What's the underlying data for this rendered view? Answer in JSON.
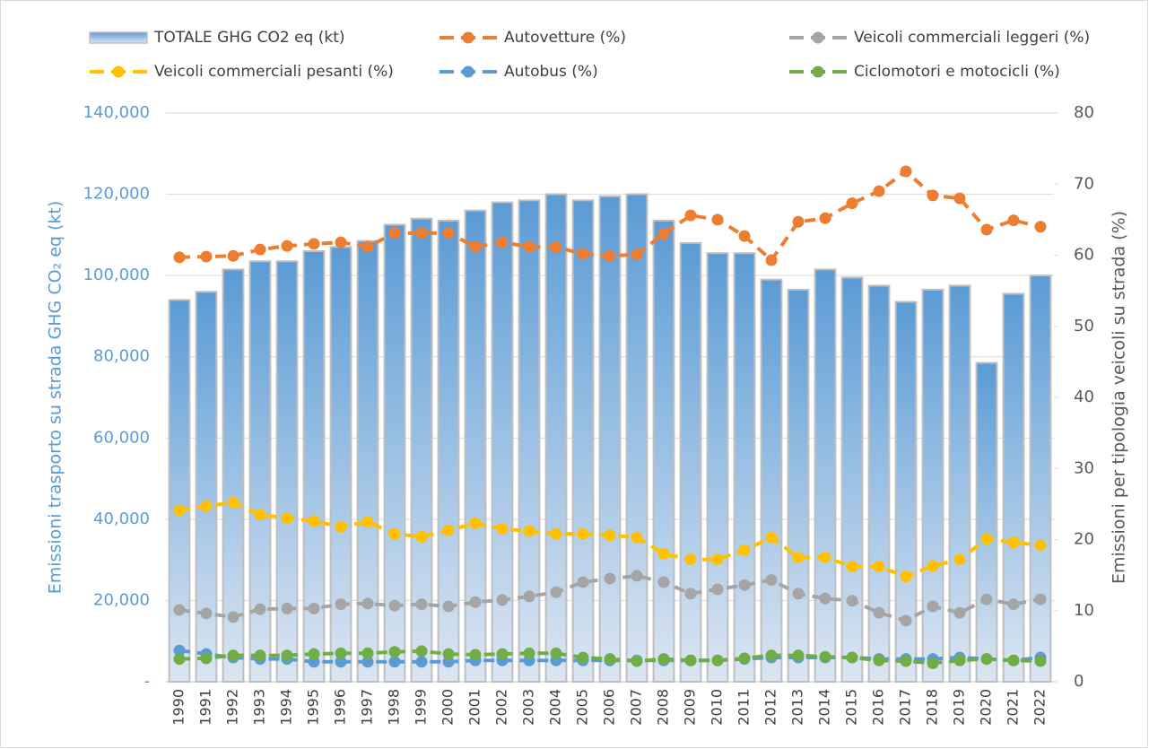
{
  "chart_data": {
    "type": "bar",
    "y_label": "Emissioni trasporto su strada GHG CO₂ eq (kt)",
    "y2_label": "Emissioni per tipologia veicoli su strada (%)",
    "categories": [
      "1990",
      "1991",
      "1992",
      "1993",
      "1994",
      "1995",
      "1996",
      "1997",
      "1998",
      "1999",
      "2000",
      "2001",
      "2002",
      "2003",
      "2004",
      "2005",
      "2006",
      "2007",
      "2008",
      "2009",
      "2010",
      "2011",
      "2012",
      "2013",
      "2014",
      "2015",
      "2016",
      "2017",
      "2018",
      "2019",
      "2020",
      "2021",
      "2022"
    ],
    "ylim": [
      0,
      140000
    ],
    "yticks": [
      {
        "value": 0,
        "label": "-"
      },
      {
        "value": 20000,
        "label": "20,000"
      },
      {
        "value": 40000,
        "label": "40,000"
      },
      {
        "value": 60000,
        "label": "60,000"
      },
      {
        "value": 80000,
        "label": "80,000"
      },
      {
        "value": 100000,
        "label": "100,000"
      },
      {
        "value": 120000,
        "label": "120,000"
      },
      {
        "value": 140000,
        "label": "140,000"
      }
    ],
    "y2lim": [
      0,
      80
    ],
    "y2ticks": [
      0,
      10,
      20,
      30,
      40,
      50,
      60,
      70,
      80
    ],
    "grid": true,
    "legend": "top",
    "series": [
      {
        "name": "TOTALE GHG CO2 eq (kt)",
        "type": "bar",
        "color": "#5b9bd5",
        "values": [
          94000,
          96000,
          101500,
          103500,
          103500,
          106000,
          107000,
          108500,
          112500,
          114000,
          113500,
          116000,
          118000,
          118500,
          120000,
          118500,
          119500,
          120000,
          113500,
          108000,
          105500,
          105500,
          99000,
          96500,
          101500,
          99500,
          97500,
          93500,
          96500,
          97500,
          78500,
          95500,
          100000
        ]
      },
      {
        "name": "Autovetture (%)",
        "type": "line",
        "axis": "y2",
        "color": "#ed7d31",
        "values": [
          59.7,
          59.8,
          59.9,
          60.8,
          61.3,
          61.6,
          61.8,
          61.2,
          63.1,
          63.1,
          63.1,
          61.2,
          61.8,
          61.2,
          61.1,
          60.2,
          59.9,
          60.1,
          63.0,
          65.6,
          65.0,
          62.7,
          59.3,
          64.7,
          65.2,
          67.3,
          69.0,
          71.8,
          68.4,
          68.0,
          63.6,
          64.9,
          64.0
        ]
      },
      {
        "name": "Veicoli commerciali leggeri (%)",
        "type": "line",
        "axis": "y2",
        "color": "#a5a5a5",
        "values": [
          10.1,
          9.6,
          9.1,
          10.2,
          10.3,
          10.3,
          10.9,
          11.0,
          10.7,
          10.9,
          10.6,
          11.2,
          11.5,
          12.0,
          12.6,
          14.0,
          14.5,
          14.9,
          14.0,
          12.4,
          13.0,
          13.6,
          14.3,
          12.4,
          11.7,
          11.4,
          9.7,
          8.6,
          10.6,
          9.7,
          11.6,
          10.9,
          11.6
        ]
      },
      {
        "name": "Veicoli commerciali pesanti (%)",
        "type": "line",
        "axis": "y2",
        "color": "#ffc000",
        "values": [
          24.1,
          24.7,
          25.2,
          23.5,
          23.0,
          22.6,
          21.8,
          22.5,
          20.8,
          20.4,
          21.3,
          22.3,
          21.5,
          21.2,
          20.8,
          20.8,
          20.6,
          20.3,
          18.0,
          17.2,
          17.2,
          18.5,
          20.3,
          17.5,
          17.5,
          16.2,
          16.2,
          14.8,
          16.3,
          17.2,
          20.1,
          19.6,
          19.2
        ]
      },
      {
        "name": "Autobus (%)",
        "type": "line",
        "axis": "y2",
        "color": "#5b9bd5",
        "values": [
          4.4,
          3.9,
          3.4,
          3.2,
          3.2,
          2.8,
          2.8,
          2.8,
          2.8,
          2.8,
          2.8,
          3.0,
          3.0,
          3.0,
          3.0,
          3.0,
          3.0,
          3.0,
          3.0,
          3.0,
          3.0,
          3.2,
          3.4,
          3.4,
          3.4,
          3.4,
          3.2,
          3.2,
          3.2,
          3.4,
          3.2,
          3.0,
          3.4
        ]
      },
      {
        "name": "Ciclomotori e motocicli (%)",
        "type": "line",
        "axis": "y2",
        "color": "#70ad47",
        "values": [
          3.2,
          3.3,
          3.7,
          3.7,
          3.7,
          3.9,
          4.0,
          4.0,
          4.2,
          4.3,
          3.9,
          3.8,
          3.9,
          4.0,
          4.0,
          3.4,
          3.2,
          2.9,
          3.2,
          3.0,
          3.0,
          3.3,
          3.7,
          3.7,
          3.5,
          3.4,
          3.0,
          2.9,
          2.6,
          3.0,
          3.2,
          3.0,
          2.9
        ]
      }
    ]
  }
}
